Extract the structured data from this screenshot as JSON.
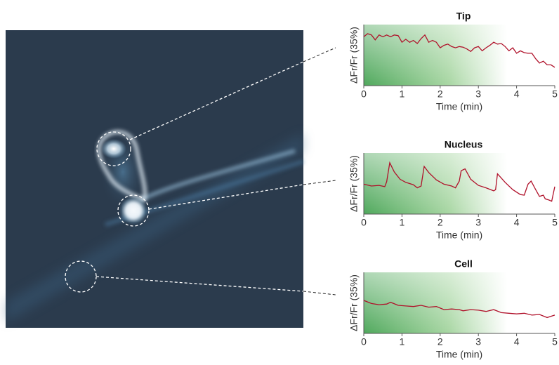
{
  "chart_data": [
    {
      "type": "line",
      "title": "Tip",
      "xlabel": "Time (min)",
      "ylabel": "ΔFr/Fr (35%)",
      "color": "#b0112a",
      "xlim": [
        0,
        5
      ],
      "xticks": [
        0,
        1,
        2,
        3,
        4,
        5
      ],
      "ylim": [
        0,
        100
      ],
      "x": [
        0,
        0.1,
        0.2,
        0.3,
        0.4,
        0.5,
        0.6,
        0.7,
        0.8,
        0.9,
        1.0,
        1.1,
        1.2,
        1.3,
        1.4,
        1.5,
        1.6,
        1.7,
        1.8,
        1.9,
        2.0,
        2.1,
        2.2,
        2.3,
        2.4,
        2.5,
        2.6,
        2.7,
        2.8,
        2.9,
        3.0,
        3.1,
        3.2,
        3.3,
        3.4,
        3.5,
        3.6,
        3.7,
        3.8,
        3.9,
        4.0,
        4.1,
        4.2,
        4.3,
        4.4,
        4.5,
        4.6,
        4.7,
        4.8,
        4.9,
        5.0
      ],
      "values": [
        80,
        85,
        83,
        75,
        83,
        80,
        83,
        80,
        83,
        82,
        71,
        76,
        71,
        74,
        69,
        77,
        83,
        71,
        74,
        71,
        62,
        66,
        68,
        64,
        62,
        64,
        63,
        60,
        56,
        62,
        64,
        57,
        62,
        66,
        71,
        68,
        69,
        64,
        57,
        62,
        53,
        57,
        54,
        53,
        53,
        44,
        37,
        40,
        34,
        34,
        30
      ]
    },
    {
      "type": "line",
      "title": "Nucleus",
      "xlabel": "Time (min)",
      "ylabel": "ΔFr/Fr (35%)",
      "color": "#b0112a",
      "xlim": [
        0,
        5
      ],
      "xticks": [
        0,
        1,
        2,
        3,
        4,
        5
      ],
      "ylim": [
        0,
        100
      ],
      "x": [
        0,
        0.2,
        0.4,
        0.55,
        0.6,
        0.68,
        0.8,
        0.95,
        1.1,
        1.3,
        1.4,
        1.5,
        1.58,
        1.7,
        1.9,
        2.1,
        2.3,
        2.4,
        2.5,
        2.55,
        2.65,
        2.8,
        3.0,
        3.2,
        3.4,
        3.45,
        3.5,
        3.7,
        3.9,
        4.1,
        4.2,
        4.3,
        4.38,
        4.5,
        4.6,
        4.7,
        4.75,
        4.85,
        4.92,
        5.0
      ],
      "values": [
        49,
        46,
        47,
        45,
        53,
        84,
        69,
        57,
        52,
        48,
        43,
        46,
        78,
        68,
        56,
        49,
        46,
        43,
        54,
        71,
        74,
        57,
        47,
        43,
        38,
        40,
        66,
        52,
        40,
        32,
        31,
        49,
        54,
        40,
        29,
        31,
        25,
        23,
        21,
        45
      ]
    },
    {
      "type": "line",
      "title": "Cell",
      "xlabel": "Time (min)",
      "ylabel": "ΔFr/Fr (35%)",
      "color": "#b0112a",
      "xlim": [
        0,
        5
      ],
      "xticks": [
        0,
        1,
        2,
        3,
        4,
        5
      ],
      "ylim": [
        0,
        100
      ],
      "x": [
        0,
        0.2,
        0.4,
        0.6,
        0.7,
        0.9,
        1.1,
        1.3,
        1.5,
        1.7,
        1.9,
        2.1,
        2.3,
        2.5,
        2.6,
        2.8,
        3.0,
        3.2,
        3.4,
        3.6,
        3.8,
        4.0,
        4.2,
        4.4,
        4.6,
        4.8,
        5.0
      ],
      "values": [
        54,
        49,
        47,
        48,
        51,
        46,
        45,
        44,
        46,
        43,
        44,
        39,
        40,
        39,
        37,
        39,
        38,
        36,
        39,
        34,
        33,
        32,
        33,
        30,
        31,
        26,
        30
      ]
    }
  ]
}
